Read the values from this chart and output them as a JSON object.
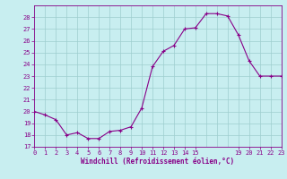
{
  "hours": [
    0,
    1,
    2,
    3,
    4,
    5,
    6,
    7,
    8,
    9,
    10,
    11,
    12,
    13,
    14,
    15,
    16,
    17,
    18,
    19,
    20,
    21,
    22,
    23
  ],
  "temps": [
    20.0,
    19.7,
    19.3,
    18.0,
    18.2,
    17.7,
    17.7,
    18.3,
    18.4,
    18.7,
    20.3,
    23.8,
    25.1,
    25.6,
    27.0,
    27.1,
    28.3,
    28.3,
    28.1,
    26.5,
    24.3,
    23.0,
    23.0,
    23.0
  ],
  "xlim": [
    0,
    23
  ],
  "ylim": [
    17,
    29
  ],
  "xticks": [
    0,
    1,
    2,
    3,
    4,
    5,
    6,
    7,
    8,
    9,
    10,
    11,
    12,
    13,
    14,
    15,
    19,
    20,
    21,
    22,
    23
  ],
  "yticks": [
    17,
    18,
    19,
    20,
    21,
    22,
    23,
    24,
    25,
    26,
    27,
    28
  ],
  "xlabel": "Windchill (Refroidissement éolien,°C)",
  "line_color": "#880088",
  "marker": "+",
  "bg_color": "#c8eef0",
  "grid_color": "#9ecece",
  "tick_fontsize": 5.0,
  "xlabel_fontsize": 5.5
}
